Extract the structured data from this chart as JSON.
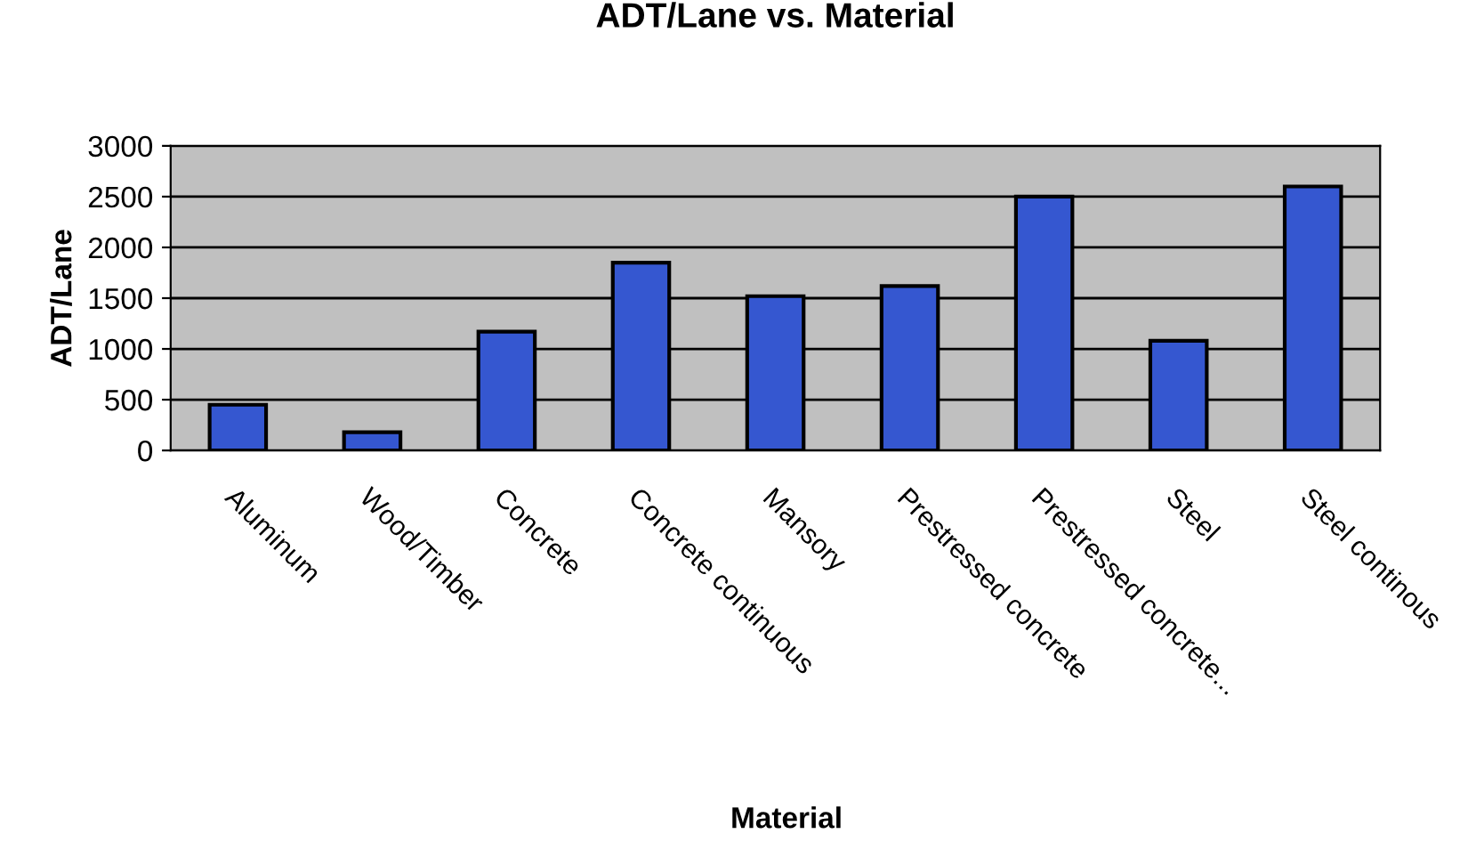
{
  "chart_data": {
    "type": "bar",
    "title": "ADT/Lane vs. Material",
    "xlabel": "Material",
    "ylabel": "ADT/Lane",
    "categories": [
      "Aluminum",
      "Wood/Timber",
      "Concrete",
      "Concrete continuous",
      "Mansory",
      "Prestressed concrete",
      "Prestressed concrete...",
      "Steel",
      "Steel continous"
    ],
    "values": [
      450,
      180,
      1170,
      1850,
      1520,
      1620,
      2500,
      1080,
      2600
    ],
    "color": "#3557d0",
    "ylim": [
      0,
      3000
    ],
    "yticks": [
      0,
      500,
      1000,
      1500,
      2000,
      2500,
      3000
    ],
    "grid": "y"
  }
}
